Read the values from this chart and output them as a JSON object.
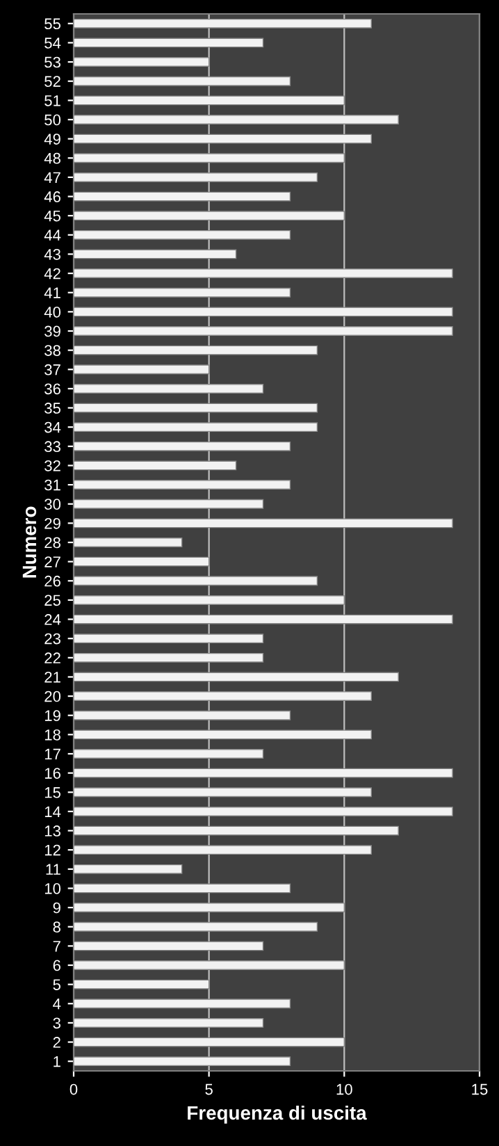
{
  "chart_data": {
    "type": "bar",
    "orientation": "horizontal",
    "xlabel": "Frequenza di uscita",
    "ylabel": "Numero",
    "categories": [
      "55",
      "54",
      "53",
      "52",
      "51",
      "50",
      "49",
      "48",
      "47",
      "46",
      "45",
      "44",
      "43",
      "42",
      "41",
      "40",
      "39",
      "38",
      "37",
      "36",
      "35",
      "34",
      "33",
      "32",
      "31",
      "30",
      "29",
      "28",
      "27",
      "26",
      "25",
      "24",
      "23",
      "22",
      "21",
      "20",
      "19",
      "18",
      "17",
      "16",
      "15",
      "14",
      "13",
      "12",
      "11",
      "10",
      "9",
      "8",
      "7",
      "6",
      "5",
      "4",
      "3",
      "2",
      "1"
    ],
    "values": [
      11,
      7,
      5,
      8,
      10,
      12,
      11,
      10,
      9,
      8,
      10,
      8,
      6,
      14,
      8,
      14,
      14,
      9,
      5,
      7,
      9,
      9,
      8,
      6,
      8,
      7,
      14,
      4,
      5,
      9,
      10,
      14,
      7,
      7,
      12,
      11,
      8,
      11,
      7,
      14,
      11,
      14,
      12,
      11,
      4,
      8,
      10,
      9,
      7,
      10,
      5,
      8,
      7,
      10,
      8
    ],
    "color": "#f2f2f2",
    "xlim": [
      0,
      15
    ],
    "xticks": [
      0,
      5,
      10,
      15
    ],
    "grid": "x",
    "legend": false
  }
}
